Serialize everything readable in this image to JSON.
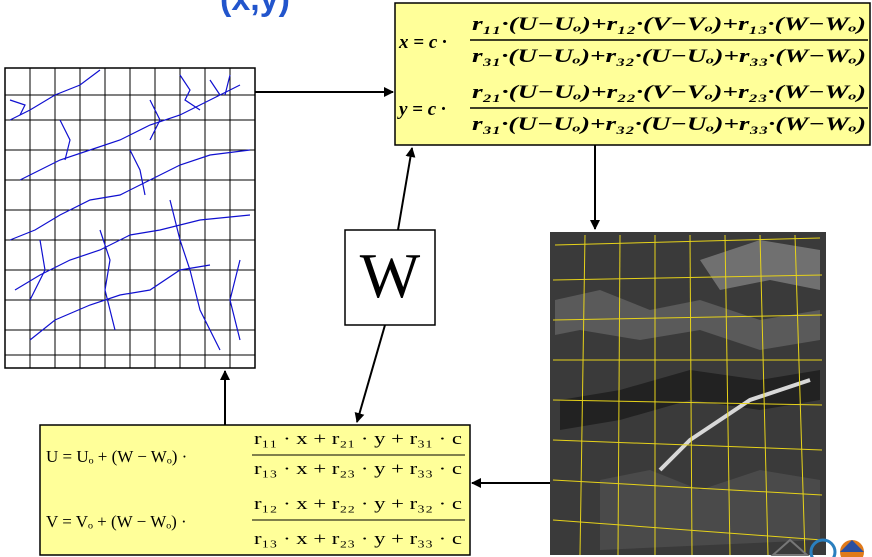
{
  "title": "(x,y)",
  "top_formula": {
    "x_lhs": "x = c ·",
    "x_numerator": "r₁₁·(U−Uₒ)+r₁₂·(V−Vₒ)+r₁₃·(W−Wₒ)",
    "x_denominator": "r₃₁·(U−Uₒ)+r₃₂·(U−Uₒ)+r₃₃·(W−Wₒ)",
    "y_lhs": "y = c ·",
    "y_numerator": "r₂₁·(U−Uₒ)+r₂₂·(V−Vₒ)+r₂₃·(W−Wₒ)",
    "y_denominator": "r₃₁·(U−Uₒ)+r₃₂·(U−Uₒ)+r₃₃·(W−Wₒ)"
  },
  "w_label": "W",
  "bottom_formula": {
    "u_lhs": "U = Uₒ + (W − Wₒ) ·",
    "u_numerator": "r₁₁ · x + r₂₁ · y + r₃₁ · c",
    "u_denominator": "r₁₃ · x + r₂₃ · y + r₃₃ · c",
    "v_lhs": "V = Vₒ + (W − Wₒ) ·",
    "v_numerator": "r₁₂ · x + r₂₂ · y + r₃₂ · c",
    "v_denominator": "r₁₃ · x + r₂₃ · y + r₃₃ · c"
  }
}
